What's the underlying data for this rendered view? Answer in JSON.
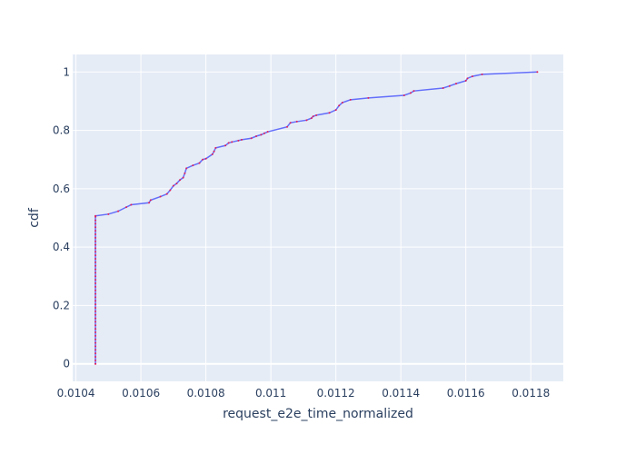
{
  "chart_data": {
    "type": "line",
    "title": "",
    "xlabel": "request_e2e_time_normalized",
    "ylabel": "cdf",
    "xlim": [
      0.01039,
      0.0119
    ],
    "ylim": [
      -0.06,
      1.06
    ],
    "x_ticks": [
      0.0104,
      0.0106,
      0.0108,
      0.011,
      0.0112,
      0.0114,
      0.0116,
      0.0118
    ],
    "x_tick_labels": [
      "0.0104",
      "0.0106",
      "0.0108",
      "0.011",
      "0.0112",
      "0.0114",
      "0.0116",
      "0.0118"
    ],
    "y_ticks": [
      0,
      0.2,
      0.4,
      0.6,
      0.8,
      1
    ],
    "y_tick_labels": [
      "0",
      "0.2",
      "0.4",
      "0.6",
      "0.8",
      "1"
    ],
    "grid": true,
    "colors": {
      "background": "#e5ecf6",
      "grid": "#ffffff",
      "line": "#636efa",
      "marker": "#e0245e",
      "text": "#2a3f5f"
    },
    "series": [
      {
        "x": [
          0.01046,
          0.01046,
          0.0105,
          0.01053,
          0.010555,
          0.01057,
          0.010625,
          0.01063,
          0.01066,
          0.01068,
          0.01069,
          0.0107,
          0.01071,
          0.01072,
          0.01073,
          0.010735,
          0.01074,
          0.01076,
          0.01078,
          0.01079,
          0.0108,
          0.01082,
          0.010825,
          0.01083,
          0.01086,
          0.01087,
          0.01088,
          0.0109,
          0.01091,
          0.01094,
          0.010955,
          0.01097,
          0.01098,
          0.01099,
          0.01105,
          0.01106,
          0.01108,
          0.01111,
          0.011125,
          0.01113,
          0.01114,
          0.01118,
          0.0112,
          0.01121,
          0.01122,
          0.011245,
          0.0113,
          0.01141,
          0.01143,
          0.01144,
          0.01153,
          0.01155,
          0.01157,
          0.0116,
          0.011605,
          0.01162,
          0.01165,
          0.01182
        ],
        "y": [
          0.0,
          0.507,
          0.513,
          0.523,
          0.537,
          0.545,
          0.552,
          0.561,
          0.573,
          0.582,
          0.595,
          0.61,
          0.618,
          0.63,
          0.638,
          0.653,
          0.67,
          0.68,
          0.688,
          0.7,
          0.703,
          0.718,
          0.728,
          0.74,
          0.748,
          0.757,
          0.76,
          0.765,
          0.768,
          0.773,
          0.78,
          0.785,
          0.79,
          0.795,
          0.812,
          0.826,
          0.83,
          0.835,
          0.842,
          0.848,
          0.852,
          0.86,
          0.87,
          0.885,
          0.895,
          0.905,
          0.911,
          0.92,
          0.928,
          0.935,
          0.945,
          0.952,
          0.96,
          0.97,
          0.978,
          0.985,
          0.992,
          1.0
        ]
      }
    ]
  }
}
